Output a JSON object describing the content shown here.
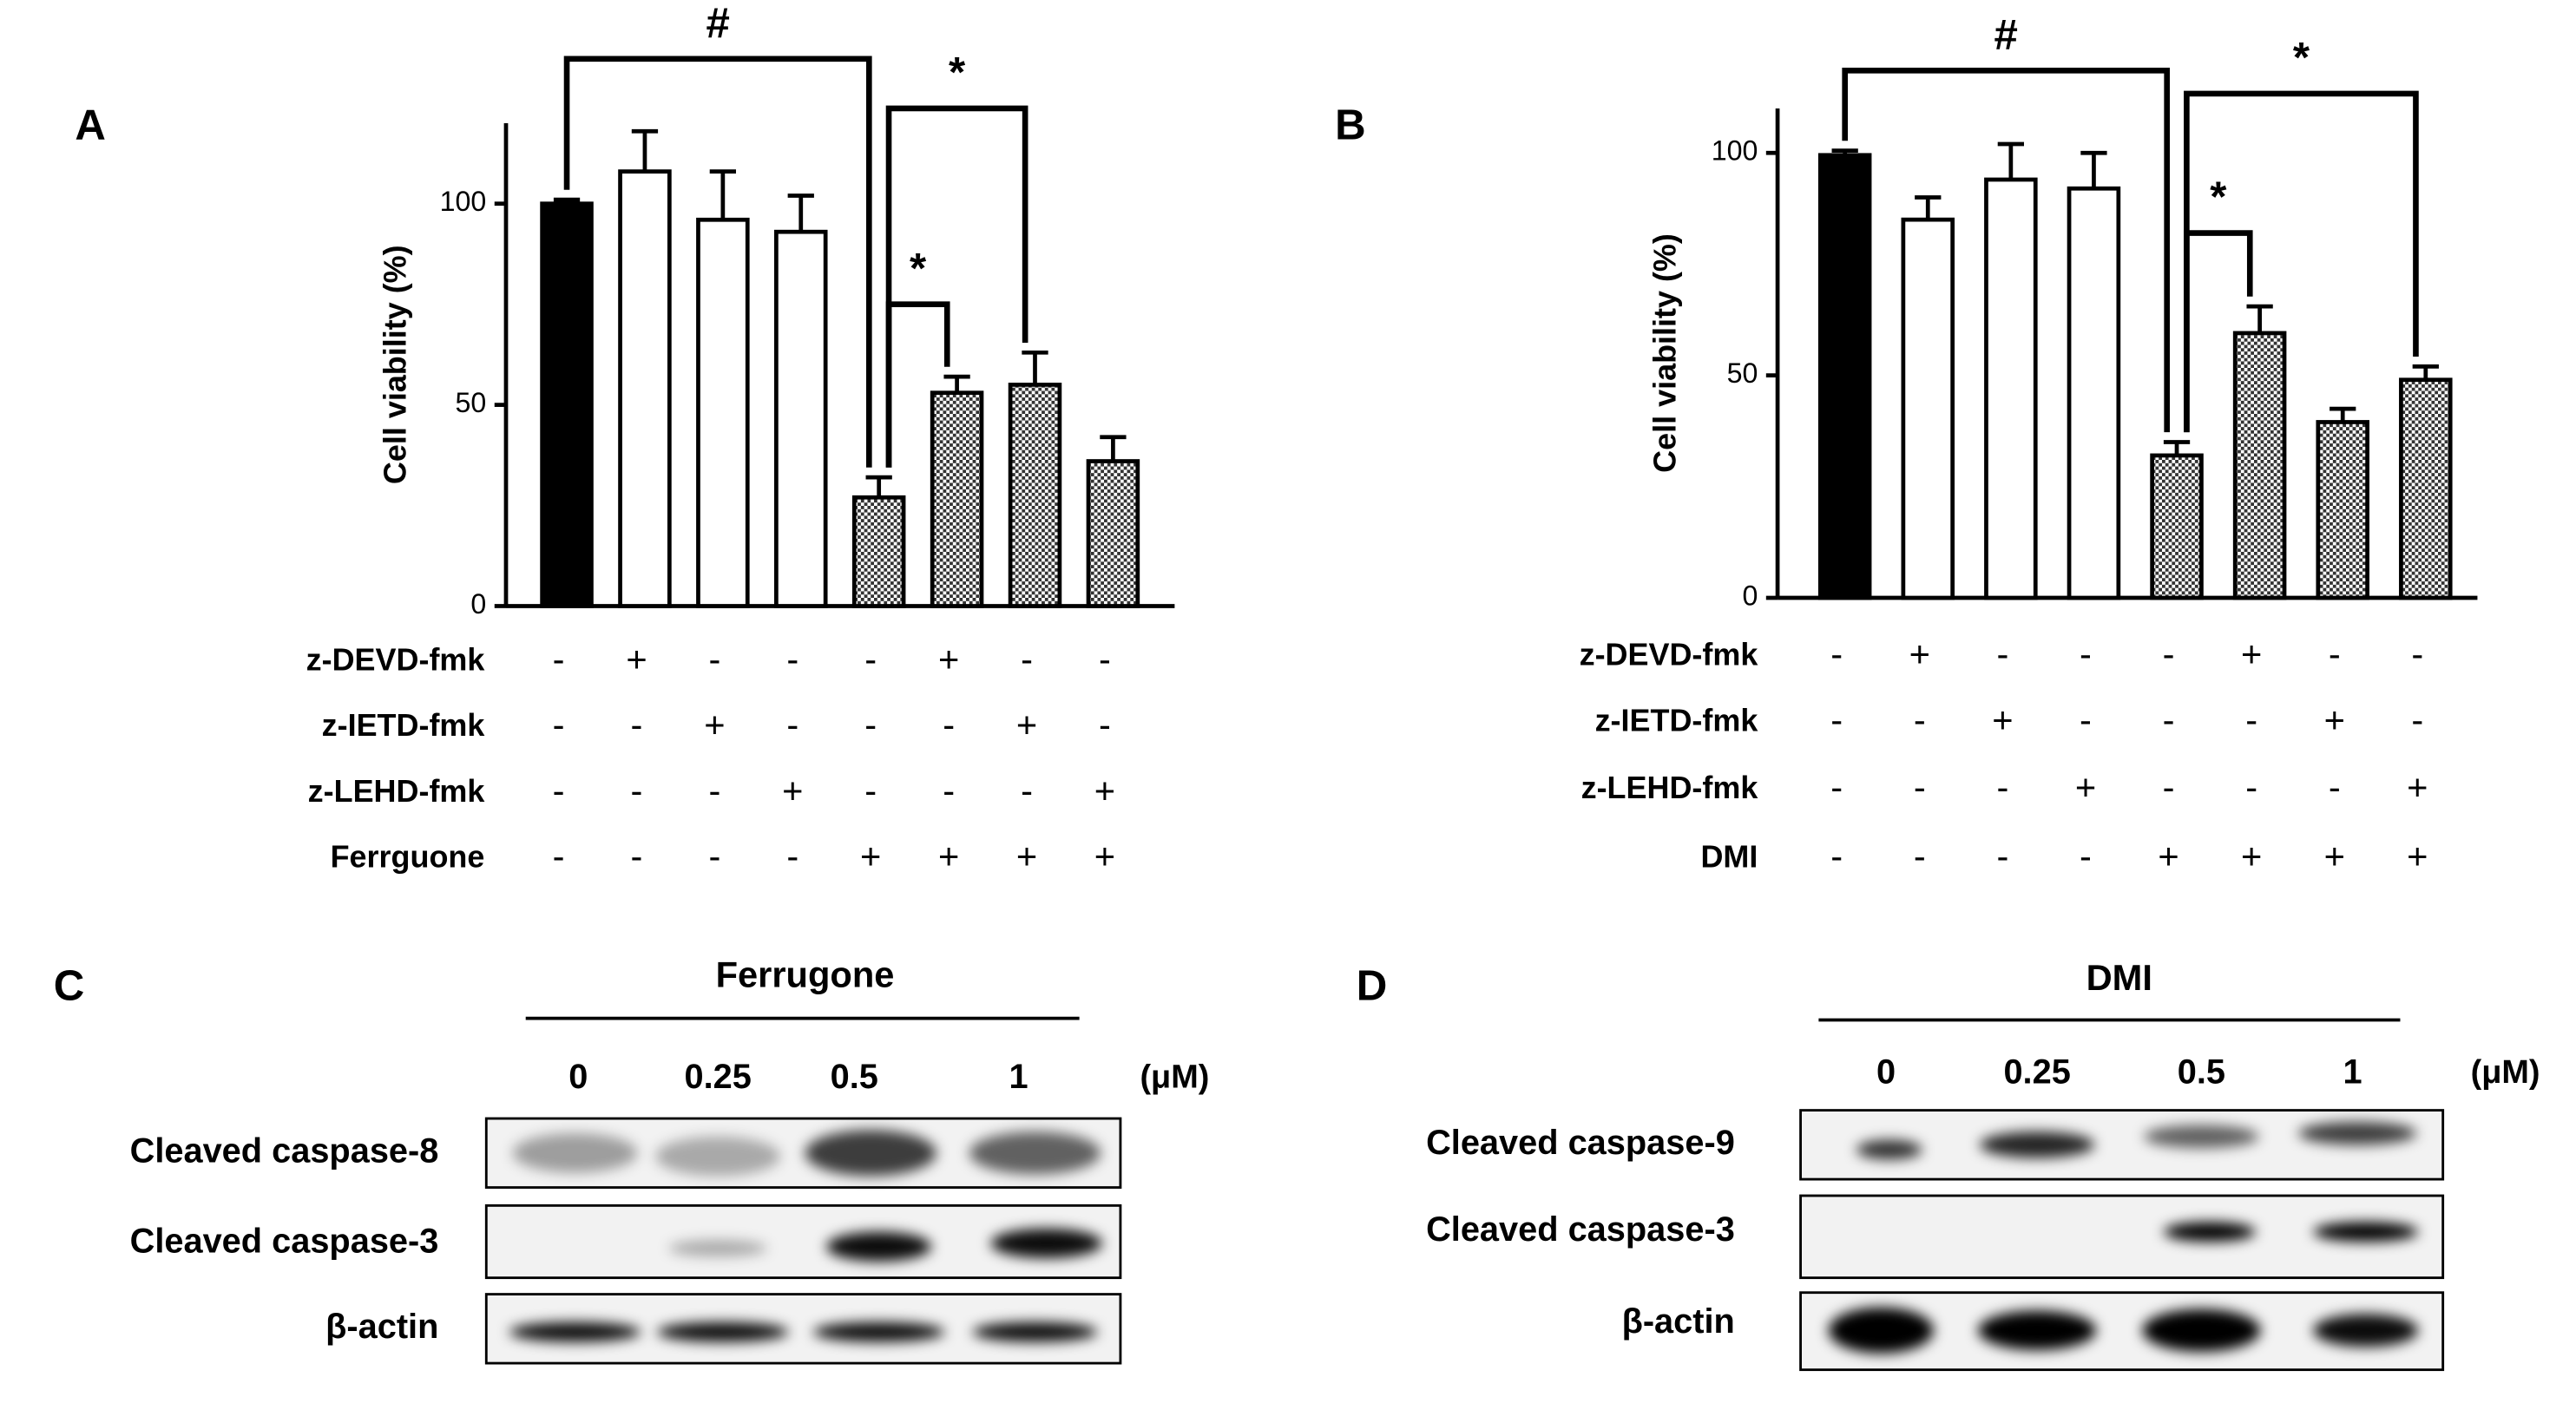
{
  "chart_data": [
    {
      "type": "bar",
      "panel": "A",
      "ylabel": "Cell viability (%)",
      "values": [
        100,
        108,
        96,
        93,
        27,
        53,
        55,
        36
      ],
      "errors": [
        1,
        10,
        12,
        9,
        5,
        4,
        8,
        6
      ],
      "fills": [
        "black",
        "white",
        "white",
        "white",
        "pattern",
        "pattern",
        "pattern",
        "pattern"
      ],
      "ylim": [
        0,
        120
      ],
      "yticks": [
        0,
        50,
        100
      ],
      "treatments": [
        {
          "name": "z-DEVD-fmk",
          "signs": [
            "-",
            "+",
            "-",
            "-",
            "-",
            "+",
            "-",
            "-"
          ]
        },
        {
          "name": "z-IETD-fmk",
          "signs": [
            "-",
            "-",
            "+",
            "-",
            "-",
            "-",
            "+",
            "-"
          ]
        },
        {
          "name": "z-LEHD-fmk",
          "signs": [
            "-",
            "-",
            "-",
            "+",
            "-",
            "-",
            "-",
            "+"
          ]
        },
        {
          "name": "Ferrguone",
          "signs": [
            "-",
            "-",
            "-",
            "-",
            "+",
            "+",
            "+",
            "+"
          ]
        }
      ],
      "annotations": [
        {
          "text": "#",
          "bars": [
            0,
            4
          ]
        },
        {
          "text": "*",
          "bars": [
            4,
            6
          ]
        },
        {
          "text": "*",
          "bars": [
            4,
            5
          ]
        }
      ]
    },
    {
      "type": "bar",
      "panel": "B",
      "ylabel": "Cell viability (%)",
      "values": [
        99.5,
        85,
        94,
        92,
        32,
        59.5,
        39.5,
        49
      ],
      "errors": [
        1,
        5,
        8,
        8,
        3,
        6,
        3,
        3
      ],
      "fills": [
        "black",
        "white",
        "white",
        "white",
        "pattern",
        "pattern",
        "pattern",
        "pattern"
      ],
      "ylim": [
        0,
        110
      ],
      "yticks": [
        0,
        50,
        100
      ],
      "treatments": [
        {
          "name": "z-DEVD-fmk",
          "signs": [
            "-",
            "+",
            "-",
            "-",
            "-",
            "+",
            "-",
            "-"
          ]
        },
        {
          "name": "z-IETD-fmk",
          "signs": [
            "-",
            "-",
            "+",
            "-",
            "-",
            "-",
            "+",
            "-"
          ]
        },
        {
          "name": "z-LEHD-fmk",
          "signs": [
            "-",
            "-",
            "-",
            "+",
            "-",
            "-",
            "-",
            "+"
          ]
        },
        {
          "name": "DMI",
          "signs": [
            "-",
            "-",
            "-",
            "-",
            "+",
            "+",
            "+",
            "+"
          ]
        }
      ],
      "annotations": [
        {
          "text": "#",
          "bars": [
            0,
            4
          ]
        },
        {
          "text": "*",
          "bars": [
            4,
            7
          ]
        },
        {
          "text": "*",
          "bars": [
            4,
            5
          ]
        }
      ]
    }
  ],
  "blots": [
    {
      "panel": "C",
      "treatment": "Ferrugone",
      "doses": [
        "0",
        "0.25",
        "0.5",
        "1"
      ],
      "unit": "(μM)",
      "rows": [
        "Cleaved caspase-8",
        "Cleaved caspase-3",
        "β-actin"
      ]
    },
    {
      "panel": "D",
      "treatment": "DMI",
      "doses": [
        "0",
        "0.25",
        "0.5",
        "1"
      ],
      "unit": "(μM)",
      "rows": [
        "Cleaved caspase-9",
        "Cleaved caspase-3",
        "β-actin"
      ]
    }
  ]
}
